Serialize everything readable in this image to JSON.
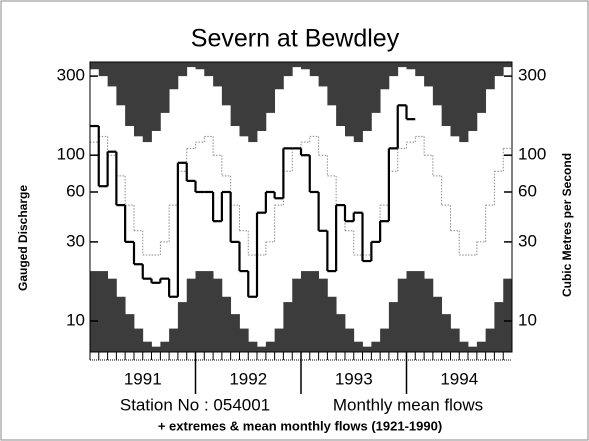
{
  "chart_data": {
    "type": "hydrograph",
    "title": "Severn at Bewdley",
    "ylabel": "Gauged Discharge",
    "y2label": "Cubic Metres per Second",
    "footer": {
      "station": "Station No : 054001",
      "series": "Monthly mean flows",
      "note": "+ extremes & mean monthly flows (1921-1990)"
    },
    "log_y": true,
    "ylim": [
      6.5,
      365
    ],
    "yticks": [
      10,
      30,
      60,
      100,
      300
    ],
    "xlim": [
      1991,
      1995
    ],
    "xticks": [
      {
        "value": 1991.5,
        "label": "1991"
      },
      {
        "value": 1992.5,
        "label": "1992"
      },
      {
        "value": 1993.5,
        "label": "1993"
      },
      {
        "value": 1994.5,
        "label": "1994"
      }
    ],
    "x": [
      1991,
      1991.083,
      1991.167,
      1991.25,
      1991.333,
      1991.417,
      1991.5,
      1991.583,
      1991.667,
      1991.75,
      1991.833,
      1991.917,
      1992,
      1992.083,
      1992.167,
      1992.25,
      1992.333,
      1992.417,
      1992.5,
      1992.583,
      1992.667,
      1992.75,
      1992.833,
      1992.917,
      1993,
      1993.083,
      1993.167,
      1993.25,
      1993.333,
      1993.417,
      1993.5,
      1993.583,
      1993.667,
      1993.75,
      1993.833,
      1993.917,
      1994,
      1994.083,
      1994.167,
      1994.25,
      1994.333,
      1994.417,
      1994.5,
      1994.583,
      1994.667,
      1994.75,
      1994.833,
      1994.917
    ],
    "series": [
      {
        "style": "max-fill",
        "color": "#3c3c3c",
        "values": [
          330,
          300,
          260,
          200,
          150,
          130,
          120,
          140,
          180,
          250,
          300,
          340,
          330,
          300,
          260,
          200,
          150,
          130,
          120,
          140,
          180,
          250,
          300,
          340,
          330,
          300,
          260,
          200,
          150,
          130,
          120,
          140,
          180,
          250,
          300,
          340,
          330,
          300,
          260,
          200,
          150,
          130,
          120,
          140,
          180,
          250,
          300,
          340
        ]
      },
      {
        "style": "min-fill",
        "color": "#3c3c3c",
        "values": [
          20,
          20,
          18,
          14,
          11,
          9,
          7.5,
          7,
          7.5,
          9,
          13,
          18,
          20,
          20,
          18,
          14,
          11,
          9,
          7.5,
          7,
          7.5,
          9,
          13,
          18,
          20,
          20,
          18,
          14,
          11,
          9,
          7.5,
          7,
          7.5,
          9,
          13,
          18,
          20,
          20,
          18,
          14,
          11,
          9,
          7.5,
          7,
          7.5,
          9,
          13,
          18
        ]
      },
      {
        "style": "dotted",
        "color": "#8a8a8a",
        "values": [
          120,
          130,
          100,
          75,
          50,
          35,
          25,
          25,
          30,
          50,
          80,
          110,
          120,
          130,
          100,
          75,
          50,
          35,
          25,
          25,
          30,
          50,
          80,
          110,
          120,
          130,
          100,
          75,
          50,
          35,
          25,
          25,
          30,
          50,
          80,
          110,
          120,
          130,
          100,
          75,
          50,
          35,
          25,
          25,
          30,
          50,
          80,
          110
        ]
      },
      {
        "style": "line",
        "color": "#000000",
        "values": [
          150,
          65,
          105,
          50,
          30,
          22,
          18,
          17,
          18,
          14,
          90,
          70,
          60,
          60,
          40,
          60,
          30,
          20,
          14,
          45,
          60,
          55,
          110,
          110,
          100,
          60,
          35,
          20,
          50,
          40,
          45,
          23,
          30,
          40,
          110,
          200,
          165,
          null,
          null,
          null,
          null,
          null,
          null,
          null,
          null,
          null,
          null,
          null
        ]
      }
    ]
  }
}
